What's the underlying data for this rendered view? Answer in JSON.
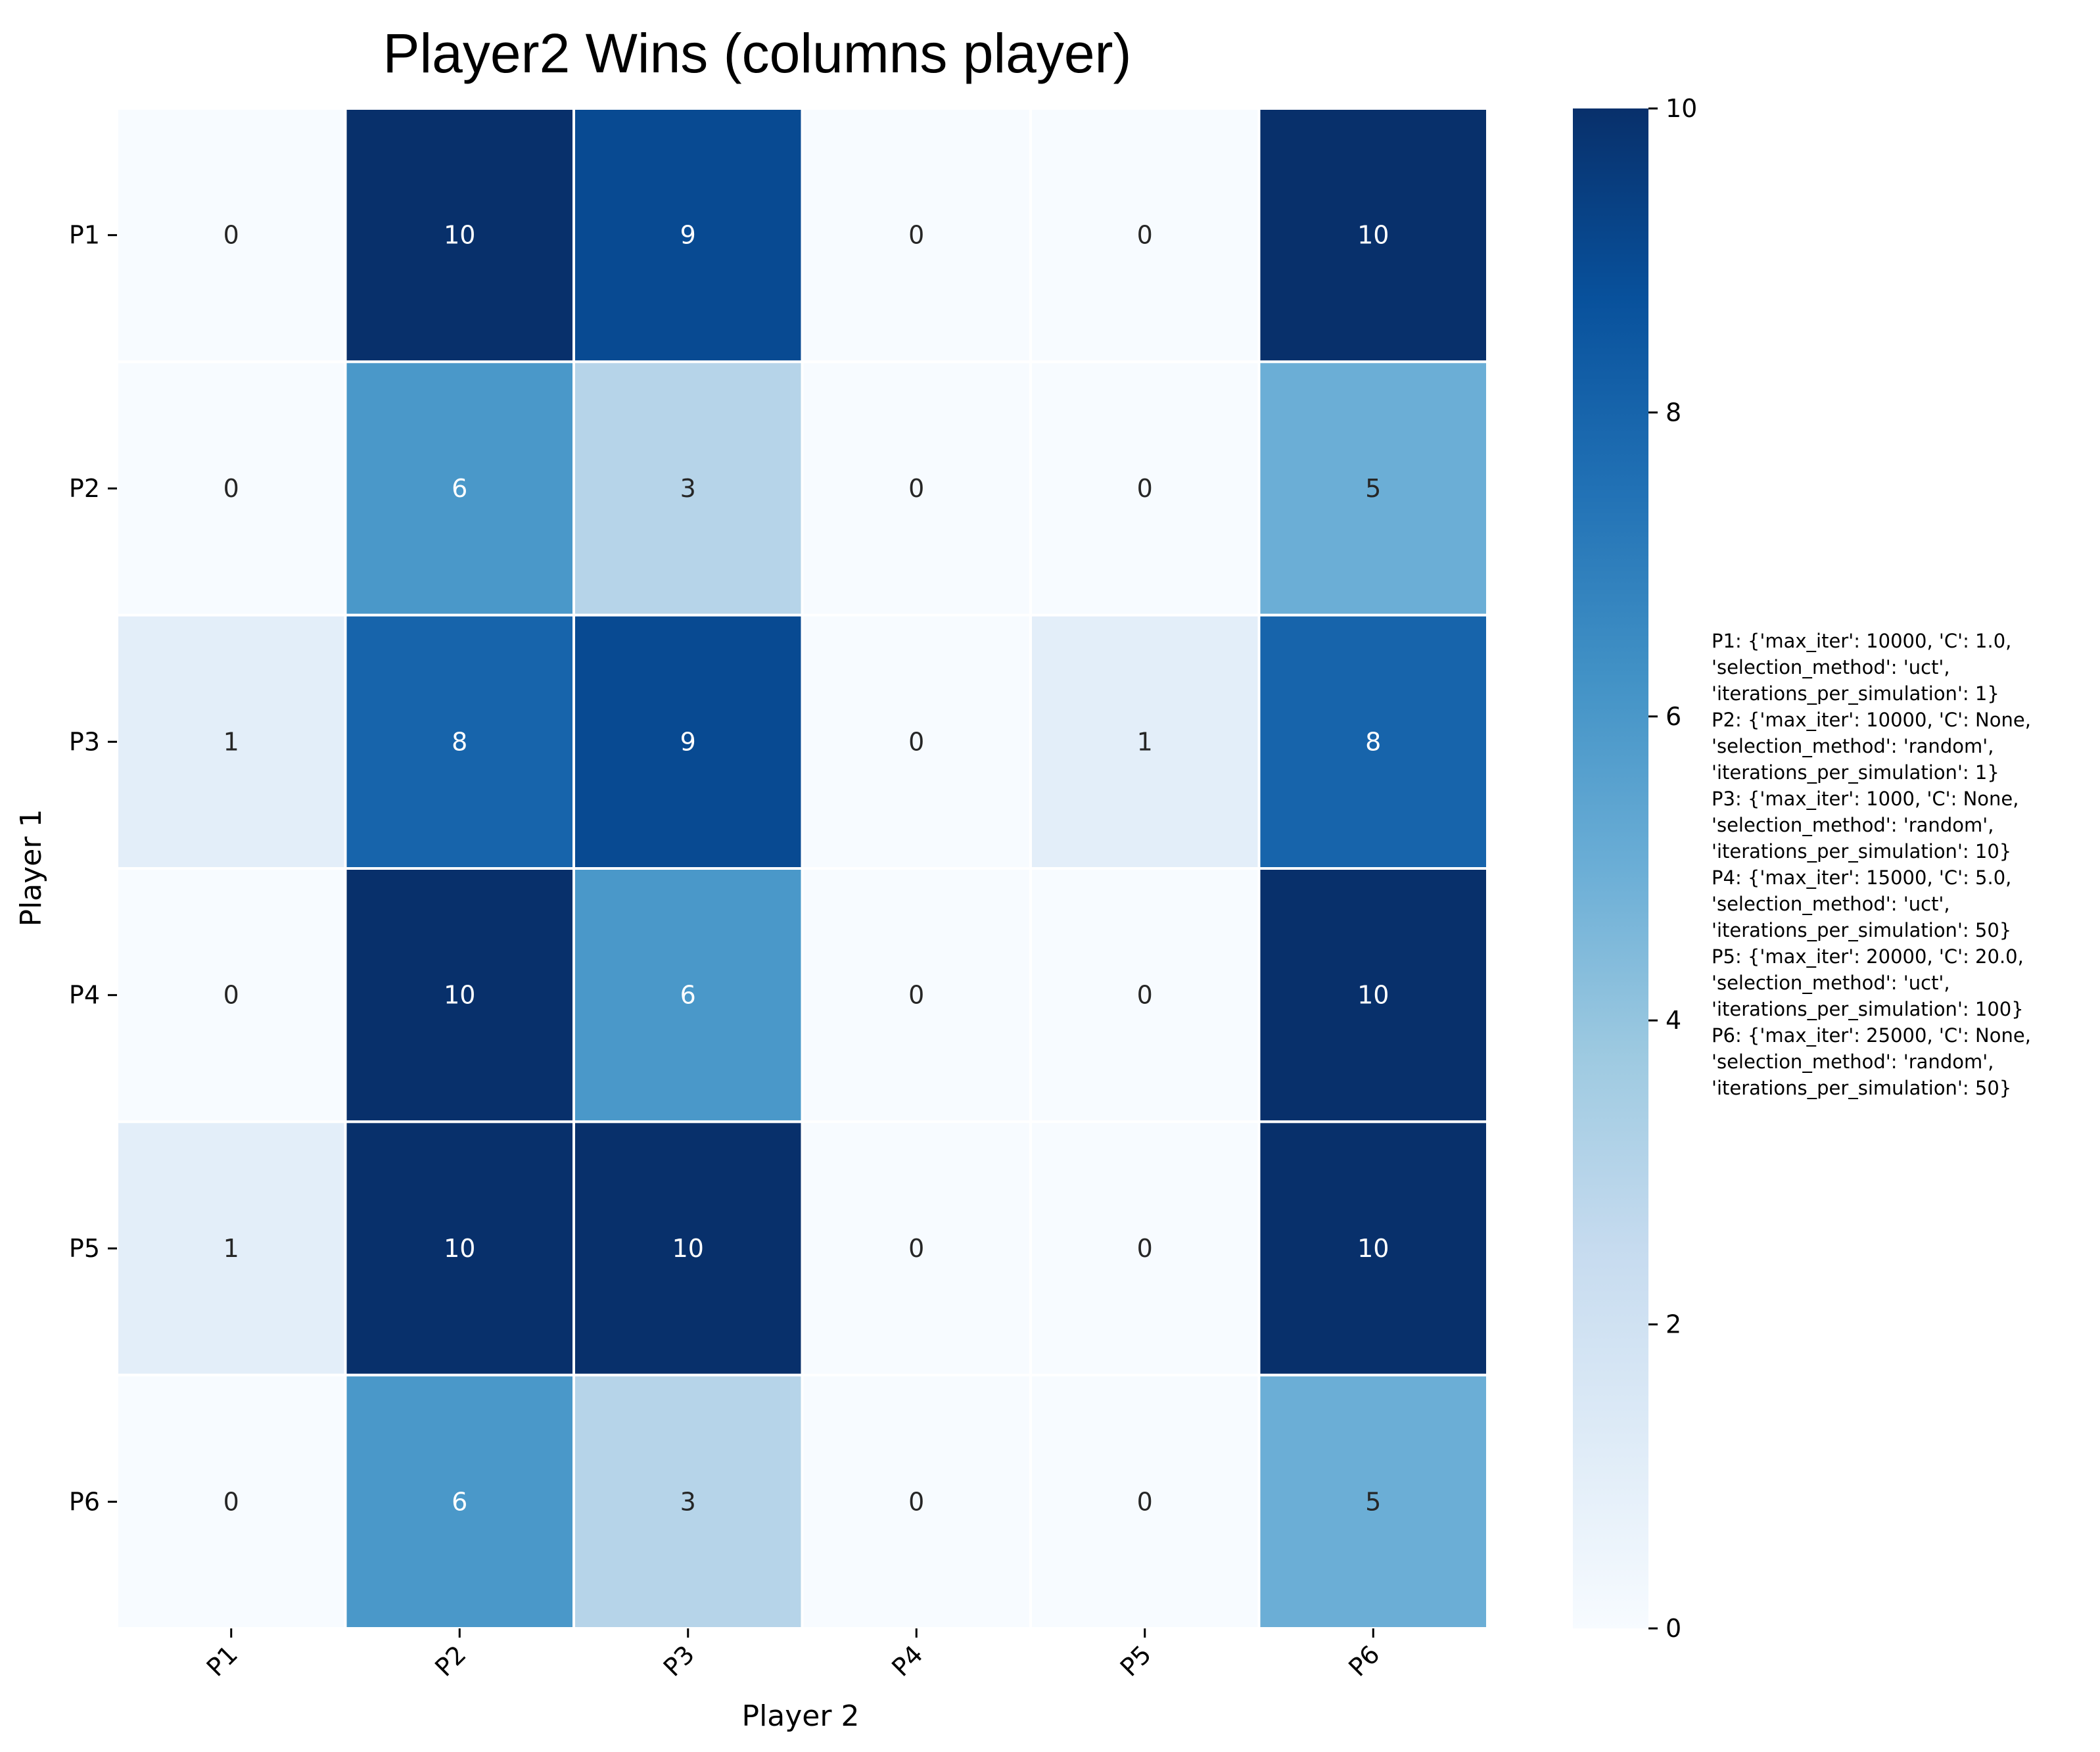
{
  "chart_data": {
    "type": "heatmap",
    "title": "Player2 Wins (columns player)",
    "xlabel": "Player 2",
    "ylabel": "Player 1",
    "columns": [
      "P1",
      "P2",
      "P3",
      "P4",
      "P5",
      "P6"
    ],
    "rows": [
      "P1",
      "P2",
      "P3",
      "P4",
      "P5",
      "P6"
    ],
    "values": [
      [
        0,
        10,
        9,
        0,
        0,
        10
      ],
      [
        0,
        6,
        3,
        0,
        0,
        5
      ],
      [
        1,
        8,
        9,
        0,
        1,
        8
      ],
      [
        0,
        10,
        6,
        0,
        0,
        10
      ],
      [
        1,
        10,
        10,
        0,
        0,
        10
      ],
      [
        0,
        6,
        3,
        0,
        0,
        5
      ]
    ],
    "colorbar": {
      "min": 0,
      "max": 10,
      "ticks": [
        "0",
        "2",
        "4",
        "6",
        "8",
        "10"
      ],
      "colormap": "Blues"
    },
    "annotation_lines": [
      "P1: {'max_iter': 10000, 'C': 1.0,",
      "'selection_method': 'uct',",
      "'iterations_per_simulation': 1}",
      "P2: {'max_iter': 10000, 'C': None,",
      "'selection_method': 'random',",
      "'iterations_per_simulation': 1}",
      "P3: {'max_iter': 1000, 'C': None,",
      "'selection_method': 'random',",
      "'iterations_per_simulation': 10}",
      "P4: {'max_iter': 15000, 'C': 5.0,",
      "'selection_method': 'uct',",
      "'iterations_per_simulation': 50}",
      "P5: {'max_iter': 20000, 'C': 20.0,",
      "'selection_method': 'uct',",
      "'iterations_per_simulation': 100}",
      "P6: {'max_iter': 25000, 'C': None,",
      "'selection_method': 'random',",
      "'iterations_per_simulation': 50}"
    ],
    "grid": false
  }
}
